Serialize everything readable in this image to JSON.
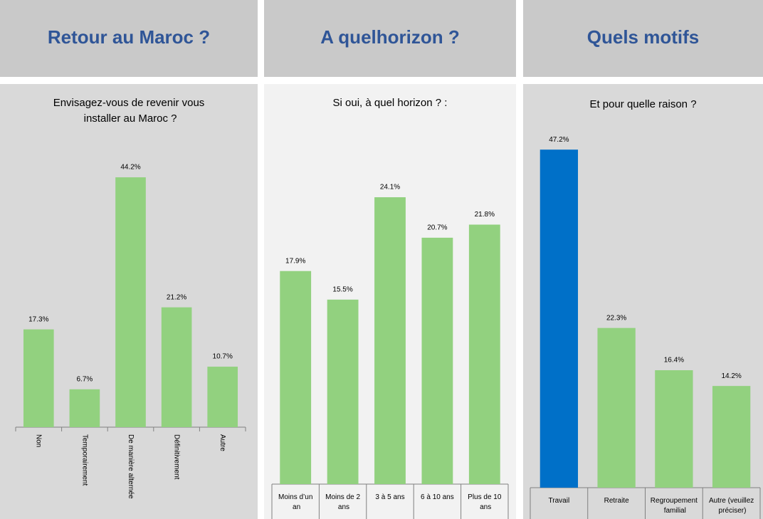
{
  "chart_data": [
    {
      "type": "bar",
      "header": "Retour au Maroc ?",
      "title": "Envisagez-vous de revenir vous installer au Maroc ?",
      "categories": [
        "Non",
        "Temporairement",
        "De manière alternée",
        "Définitivement",
        "Autre"
      ],
      "values": [
        17.3,
        6.7,
        44.2,
        21.2,
        10.7
      ],
      "value_labels": [
        "17.3%",
        "6.7%",
        "44.2%",
        "21.2%",
        "10.7%"
      ],
      "colors": [
        "#92d17f",
        "#92d17f",
        "#92d17f",
        "#92d17f",
        "#92d17f"
      ]
    },
    {
      "type": "bar",
      "header": "A quelhorizon ?",
      "title": "Si oui, à quel horizon ? :",
      "categories": [
        "Moins d’un an",
        "Moins de 2 ans",
        "3 à 5 ans",
        "6 à 10 ans",
        "Plus de 10 ans"
      ],
      "values": [
        17.9,
        15.5,
        24.1,
        20.7,
        21.8
      ],
      "value_labels": [
        "17.9%",
        "15.5%",
        "24.1%",
        "20.7%",
        "21.8%"
      ],
      "colors": [
        "#92d17f",
        "#92d17f",
        "#92d17f",
        "#92d17f",
        "#92d17f"
      ]
    },
    {
      "type": "bar",
      "header": "Quels motifs",
      "title": "Et pour quelle raison ?",
      "categories": [
        "Travail",
        "Retraite",
        "Regroupement familial",
        "Autre (veuillez préciser)"
      ],
      "values": [
        47.2,
        22.3,
        16.4,
        14.2
      ],
      "value_labels": [
        "47.2%",
        "22.3%",
        "16.4%",
        "14.2%"
      ],
      "colors": [
        "#0070c8",
        "#92d17f",
        "#92d17f",
        "#92d17f"
      ]
    }
  ]
}
